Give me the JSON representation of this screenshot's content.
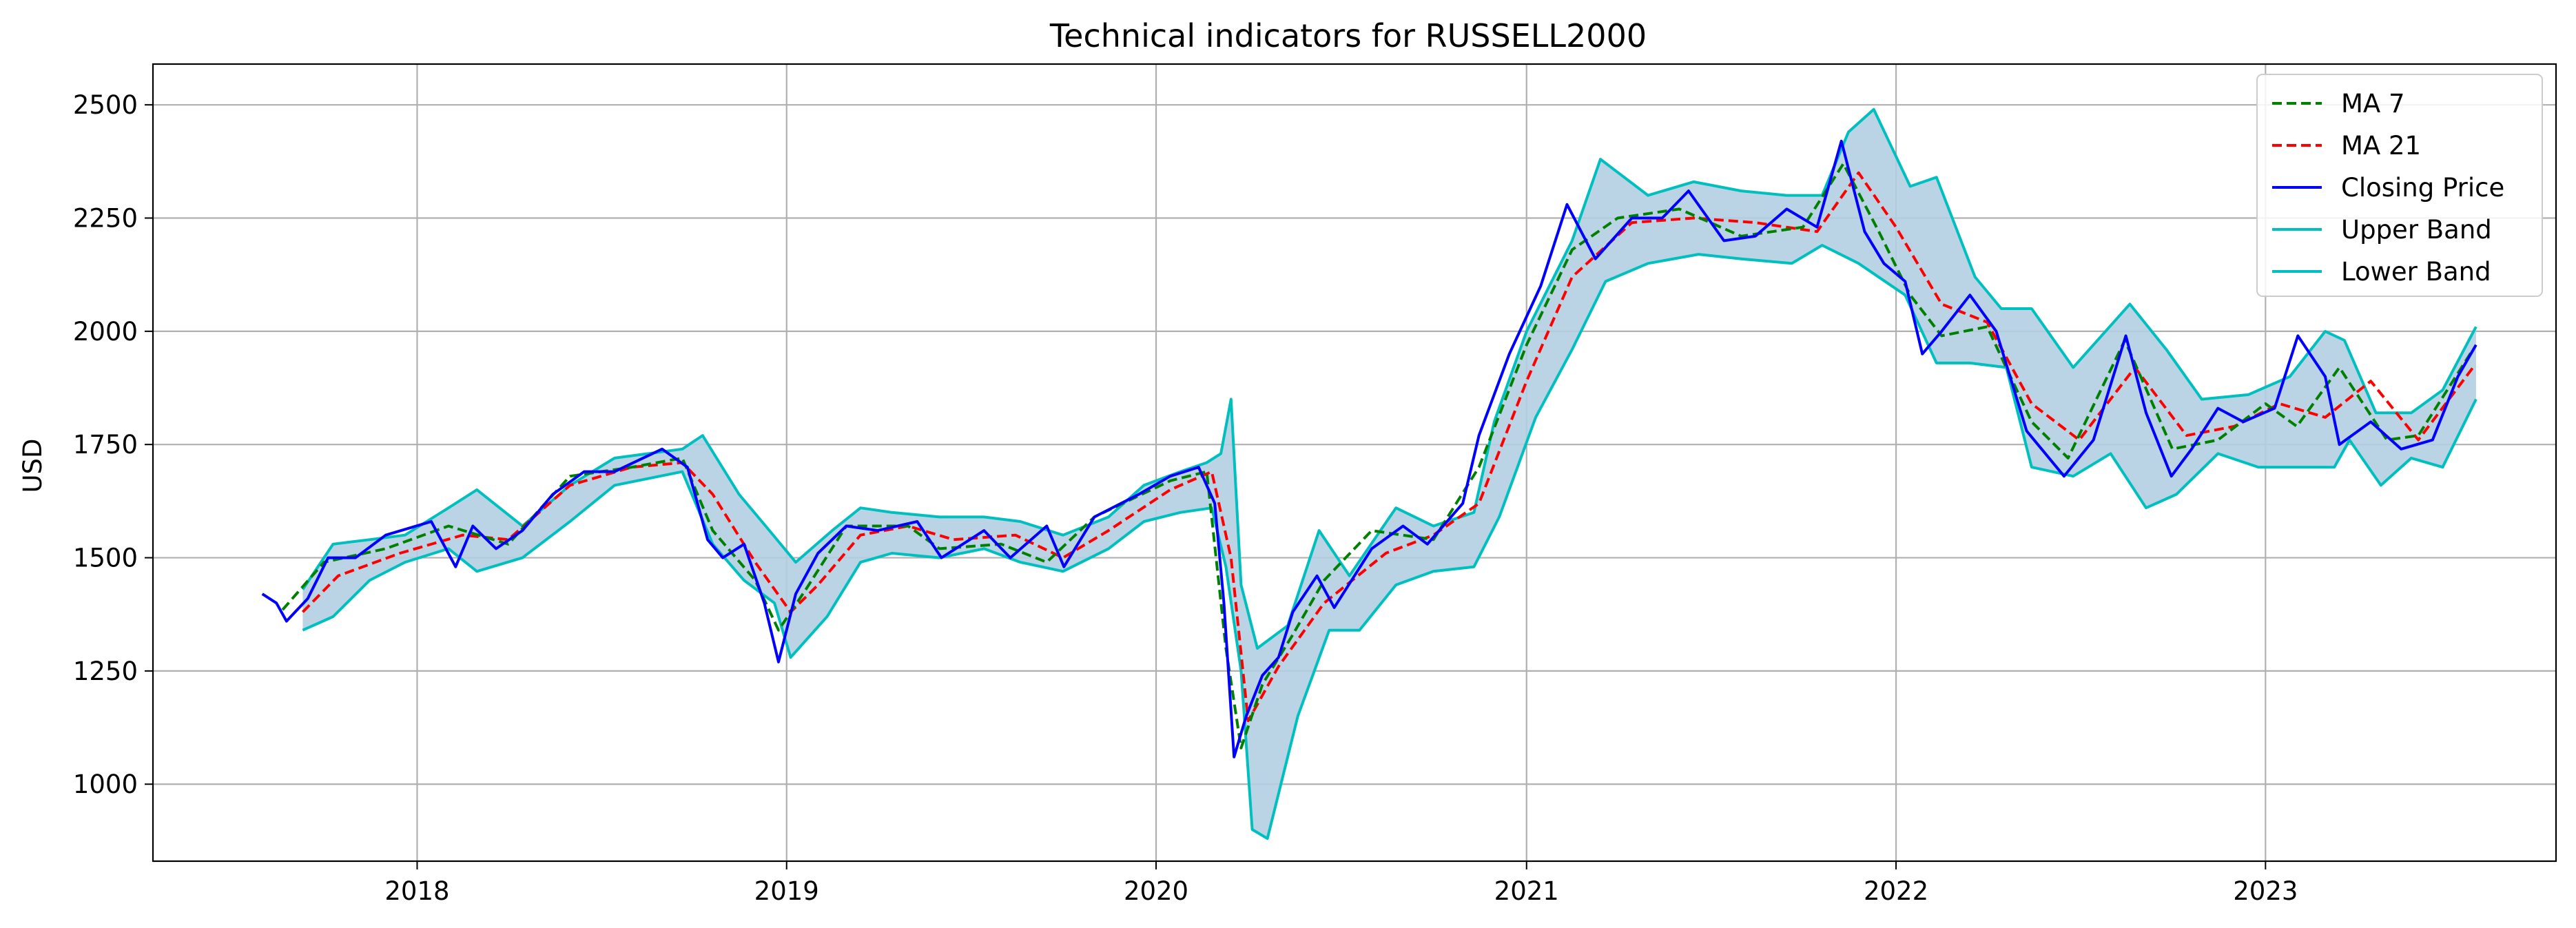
{
  "chart_data": {
    "type": "line",
    "title": "Technical indicators for RUSSELL2000",
    "xlabel": "",
    "ylabel": "USD",
    "xlim": [
      "2017-04-15",
      "2023-10-15"
    ],
    "ylim": [
      830,
      2590
    ],
    "x_ticks": [
      "2018",
      "2019",
      "2020",
      "2021",
      "2022",
      "2023"
    ],
    "y_ticks": [
      1000,
      1250,
      1500,
      1750,
      2000,
      2250,
      2500
    ],
    "grid": true,
    "legend_position": "top-right",
    "band_fill_color": "#b2cfe2",
    "series": [
      {
        "name": "MA 7",
        "style": "dashed",
        "color": "#008000",
        "x": [
          "2017-08-21",
          "2017-10-01",
          "2017-12-01",
          "2018-02-01",
          "2018-04-01",
          "2018-06-01",
          "2018-08-01",
          "2018-09-20",
          "2018-10-20",
          "2018-12-01",
          "2018-12-24",
          "2019-01-20",
          "2019-03-01",
          "2019-05-01",
          "2019-06-01",
          "2019-08-01",
          "2019-09-15",
          "2019-11-01",
          "2020-01-15",
          "2020-02-20",
          "2020-03-10",
          "2020-03-25",
          "2020-04-15",
          "2020-05-15",
          "2020-06-15",
          "2020-08-01",
          "2020-10-01",
          "2020-11-15",
          "2021-01-01",
          "2021-02-15",
          "2021-04-01",
          "2021-06-01",
          "2021-08-01",
          "2021-10-01",
          "2021-11-10",
          "2021-12-15",
          "2022-01-15",
          "2022-02-15",
          "2022-04-01",
          "2022-05-15",
          "2022-06-20",
          "2022-08-15",
          "2022-10-01",
          "2022-11-15",
          "2023-01-01",
          "2023-02-01",
          "2023-03-15",
          "2023-05-01",
          "2023-06-01",
          "2023-07-25"
        ],
        "values": [
          1385,
          1490,
          1520,
          1570,
          1530,
          1680,
          1700,
          1720,
          1560,
          1450,
          1340,
          1430,
          1570,
          1570,
          1520,
          1530,
          1490,
          1590,
          1670,
          1690,
          1300,
          1080,
          1220,
          1330,
          1450,
          1560,
          1540,
          1700,
          1970,
          2180,
          2250,
          2270,
          2210,
          2230,
          2370,
          2220,
          2080,
          1990,
          2010,
          1800,
          1720,
          1980,
          1740,
          1760,
          1840,
          1790,
          1920,
          1760,
          1770,
          1960
        ]
      },
      {
        "name": "MA 21",
        "style": "dashed",
        "color": "#ff0000",
        "x": [
          "2017-09-10",
          "2017-10-15",
          "2017-12-15",
          "2018-02-15",
          "2018-04-01",
          "2018-06-01",
          "2018-08-01",
          "2018-09-20",
          "2018-10-20",
          "2018-12-01",
          "2019-01-05",
          "2019-02-01",
          "2019-03-15",
          "2019-05-01",
          "2019-06-15",
          "2019-08-15",
          "2019-10-01",
          "2019-11-15",
          "2020-01-15",
          "2020-02-25",
          "2020-03-15",
          "2020-04-01",
          "2020-05-01",
          "2020-06-15",
          "2020-08-15",
          "2020-10-01",
          "2020-11-15",
          "2021-01-01",
          "2021-02-15",
          "2021-04-15",
          "2021-06-15",
          "2021-08-15",
          "2021-10-15",
          "2021-11-25",
          "2022-01-01",
          "2022-02-15",
          "2022-04-01",
          "2022-05-15",
          "2022-07-01",
          "2022-08-25",
          "2022-10-15",
          "2022-12-01",
          "2023-01-15",
          "2023-03-01",
          "2023-04-15",
          "2023-06-01",
          "2023-07-25"
        ],
        "values": [
          1380,
          1460,
          1510,
          1550,
          1540,
          1660,
          1700,
          1710,
          1640,
          1490,
          1380,
          1440,
          1550,
          1570,
          1540,
          1550,
          1500,
          1560,
          1650,
          1690,
          1500,
          1140,
          1260,
          1400,
          1510,
          1550,
          1620,
          1890,
          2120,
          2240,
          2250,
          2240,
          2220,
          2350,
          2230,
          2060,
          2020,
          1840,
          1760,
          1920,
          1770,
          1790,
          1840,
          1810,
          1890,
          1760,
          1920
        ]
      },
      {
        "name": "Closing Price",
        "style": "solid",
        "color": "#0000ff",
        "x": [
          "2017-08-01",
          "2017-08-15",
          "2017-08-25",
          "2017-09-15",
          "2017-10-05",
          "2017-11-01",
          "2017-12-01",
          "2018-01-15",
          "2018-02-08",
          "2018-02-25",
          "2018-03-20",
          "2018-04-15",
          "2018-05-15",
          "2018-06-15",
          "2018-07-15",
          "2018-08-31",
          "2018-09-25",
          "2018-10-15",
          "2018-10-30",
          "2018-11-20",
          "2018-12-10",
          "2018-12-24",
          "2019-01-10",
          "2019-02-01",
          "2019-03-01",
          "2019-04-01",
          "2019-05-10",
          "2019-06-03",
          "2019-07-15",
          "2019-08-10",
          "2019-09-15",
          "2019-10-02",
          "2019-11-01",
          "2019-12-15",
          "2020-01-15",
          "2020-02-12",
          "2020-02-28",
          "2020-03-08",
          "2020-03-18",
          "2020-03-30",
          "2020-04-15",
          "2020-05-01",
          "2020-05-15",
          "2020-06-08",
          "2020-06-25",
          "2020-08-01",
          "2020-09-01",
          "2020-09-25",
          "2020-10-30",
          "2020-11-15",
          "2020-12-15",
          "2021-01-15",
          "2021-02-10",
          "2021-03-10",
          "2021-04-15",
          "2021-05-15",
          "2021-06-10",
          "2021-07-15",
          "2021-08-15",
          "2021-09-15",
          "2021-10-15",
          "2021-11-08",
          "2021-12-01",
          "2021-12-20",
          "2022-01-10",
          "2022-01-27",
          "2022-02-15",
          "2022-03-15",
          "2022-04-10",
          "2022-05-10",
          "2022-06-16",
          "2022-07-15",
          "2022-08-16",
          "2022-09-05",
          "2022-09-30",
          "2022-10-20",
          "2022-11-15",
          "2022-12-10",
          "2023-01-10",
          "2023-02-02",
          "2023-03-01",
          "2023-03-15",
          "2023-04-15",
          "2023-05-15",
          "2023-06-15",
          "2023-07-10",
          "2023-07-28"
        ],
        "values": [
          1420,
          1400,
          1360,
          1410,
          1500,
          1500,
          1550,
          1580,
          1480,
          1570,
          1520,
          1560,
          1640,
          1690,
          1690,
          1740,
          1700,
          1540,
          1500,
          1530,
          1400,
          1270,
          1420,
          1510,
          1570,
          1560,
          1580,
          1500,
          1560,
          1500,
          1570,
          1480,
          1590,
          1640,
          1680,
          1700,
          1620,
          1400,
          1060,
          1150,
          1240,
          1280,
          1380,
          1460,
          1390,
          1520,
          1570,
          1530,
          1620,
          1770,
          1950,
          2100,
          2280,
          2160,
          2250,
          2250,
          2310,
          2200,
          2210,
          2270,
          2230,
          2420,
          2220,
          2150,
          2110,
          1950,
          2000,
          2080,
          2000,
          1780,
          1680,
          1760,
          1990,
          1820,
          1680,
          1740,
          1830,
          1800,
          1830,
          1990,
          1900,
          1750,
          1800,
          1740,
          1760,
          1900,
          1970
        ]
      },
      {
        "name": "Upper Band",
        "style": "solid",
        "color": "#00bfbf",
        "x": [
          "2017-09-10",
          "2017-10-10",
          "2017-11-15",
          "2017-12-20",
          "2018-02-01",
          "2018-03-01",
          "2018-04-15",
          "2018-06-01",
          "2018-07-15",
          "2018-09-20",
          "2018-10-10",
          "2018-11-15",
          "2018-12-15",
          "2019-01-10",
          "2019-02-15",
          "2019-03-15",
          "2019-04-15",
          "2019-06-01",
          "2019-07-15",
          "2019-08-20",
          "2019-10-01",
          "2019-11-15",
          "2019-12-20",
          "2020-01-25",
          "2020-02-20",
          "2020-03-05",
          "2020-03-15",
          "2020-03-25",
          "2020-04-10",
          "2020-05-10",
          "2020-06-10",
          "2020-07-10",
          "2020-08-25",
          "2020-10-01",
          "2020-11-10",
          "2020-11-30",
          "2021-01-01",
          "2021-02-15",
          "2021-03-15",
          "2021-05-01",
          "2021-06-15",
          "2021-08-01",
          "2021-09-15",
          "2021-10-20",
          "2021-11-15",
          "2021-12-10",
          "2022-01-15",
          "2022-02-10",
          "2022-03-20",
          "2022-04-15",
          "2022-05-15",
          "2022-06-25",
          "2022-08-20",
          "2022-09-25",
          "2022-10-30",
          "2022-12-15",
          "2023-01-25",
          "2023-03-01",
          "2023-03-20",
          "2023-04-20",
          "2023-05-25",
          "2023-06-25",
          "2023-07-28"
        ],
        "values": [
          1430,
          1530,
          1540,
          1550,
          1610,
          1650,
          1570,
          1660,
          1720,
          1740,
          1770,
          1640,
          1560,
          1490,
          1560,
          1610,
          1600,
          1590,
          1590,
          1580,
          1550,
          1590,
          1660,
          1690,
          1710,
          1730,
          1850,
          1440,
          1300,
          1350,
          1560,
          1460,
          1610,
          1570,
          1600,
          1800,
          2000,
          2200,
          2380,
          2300,
          2330,
          2310,
          2300,
          2300,
          2440,
          2490,
          2320,
          2340,
          2120,
          2050,
          2050,
          1920,
          2060,
          1960,
          1850,
          1860,
          1900,
          2000,
          1980,
          1820,
          1820,
          1870,
          2010
        ]
      },
      {
        "name": "Lower Band",
        "style": "solid",
        "color": "#00bfbf",
        "x": [
          "2017-09-10",
          "2017-10-10",
          "2017-11-15",
          "2017-12-20",
          "2018-02-01",
          "2018-03-01",
          "2018-04-15",
          "2018-06-01",
          "2018-07-15",
          "2018-09-20",
          "2018-10-20",
          "2018-11-20",
          "2018-12-20",
          "2019-01-05",
          "2019-02-10",
          "2019-03-15",
          "2019-04-15",
          "2019-06-01",
          "2019-07-15",
          "2019-08-20",
          "2019-10-01",
          "2019-11-15",
          "2019-12-20",
          "2020-01-25",
          "2020-02-25",
          "2020-03-10",
          "2020-03-25",
          "2020-04-05",
          "2020-04-20",
          "2020-05-20",
          "2020-06-20",
          "2020-07-20",
          "2020-08-25",
          "2020-10-01",
          "2020-11-10",
          "2020-12-05",
          "2021-01-10",
          "2021-02-15",
          "2021-03-20",
          "2021-05-01",
          "2021-06-20",
          "2021-08-01",
          "2021-09-20",
          "2021-10-20",
          "2021-11-25",
          "2022-01-10",
          "2022-02-10",
          "2022-03-15",
          "2022-04-20",
          "2022-05-15",
          "2022-06-25",
          "2022-08-01",
          "2022-09-05",
          "2022-10-05",
          "2022-11-15",
          "2022-12-25",
          "2023-01-25",
          "2023-03-10",
          "2023-03-25",
          "2023-04-25",
          "2023-05-25",
          "2023-06-25",
          "2023-07-28"
        ],
        "values": [
          1340,
          1370,
          1450,
          1490,
          1520,
          1470,
          1500,
          1580,
          1660,
          1690,
          1530,
          1450,
          1400,
          1280,
          1370,
          1490,
          1510,
          1500,
          1520,
          1490,
          1470,
          1520,
          1580,
          1600,
          1610,
          1480,
          1250,
          900,
          880,
          1150,
          1340,
          1340,
          1440,
          1470,
          1480,
          1590,
          1810,
          1960,
          2110,
          2150,
          2170,
          2160,
          2150,
          2190,
          2150,
          2080,
          1930,
          1930,
          1920,
          1700,
          1680,
          1730,
          1610,
          1640,
          1730,
          1700,
          1700,
          1700,
          1760,
          1660,
          1720,
          1700,
          1850
        ]
      }
    ]
  }
}
